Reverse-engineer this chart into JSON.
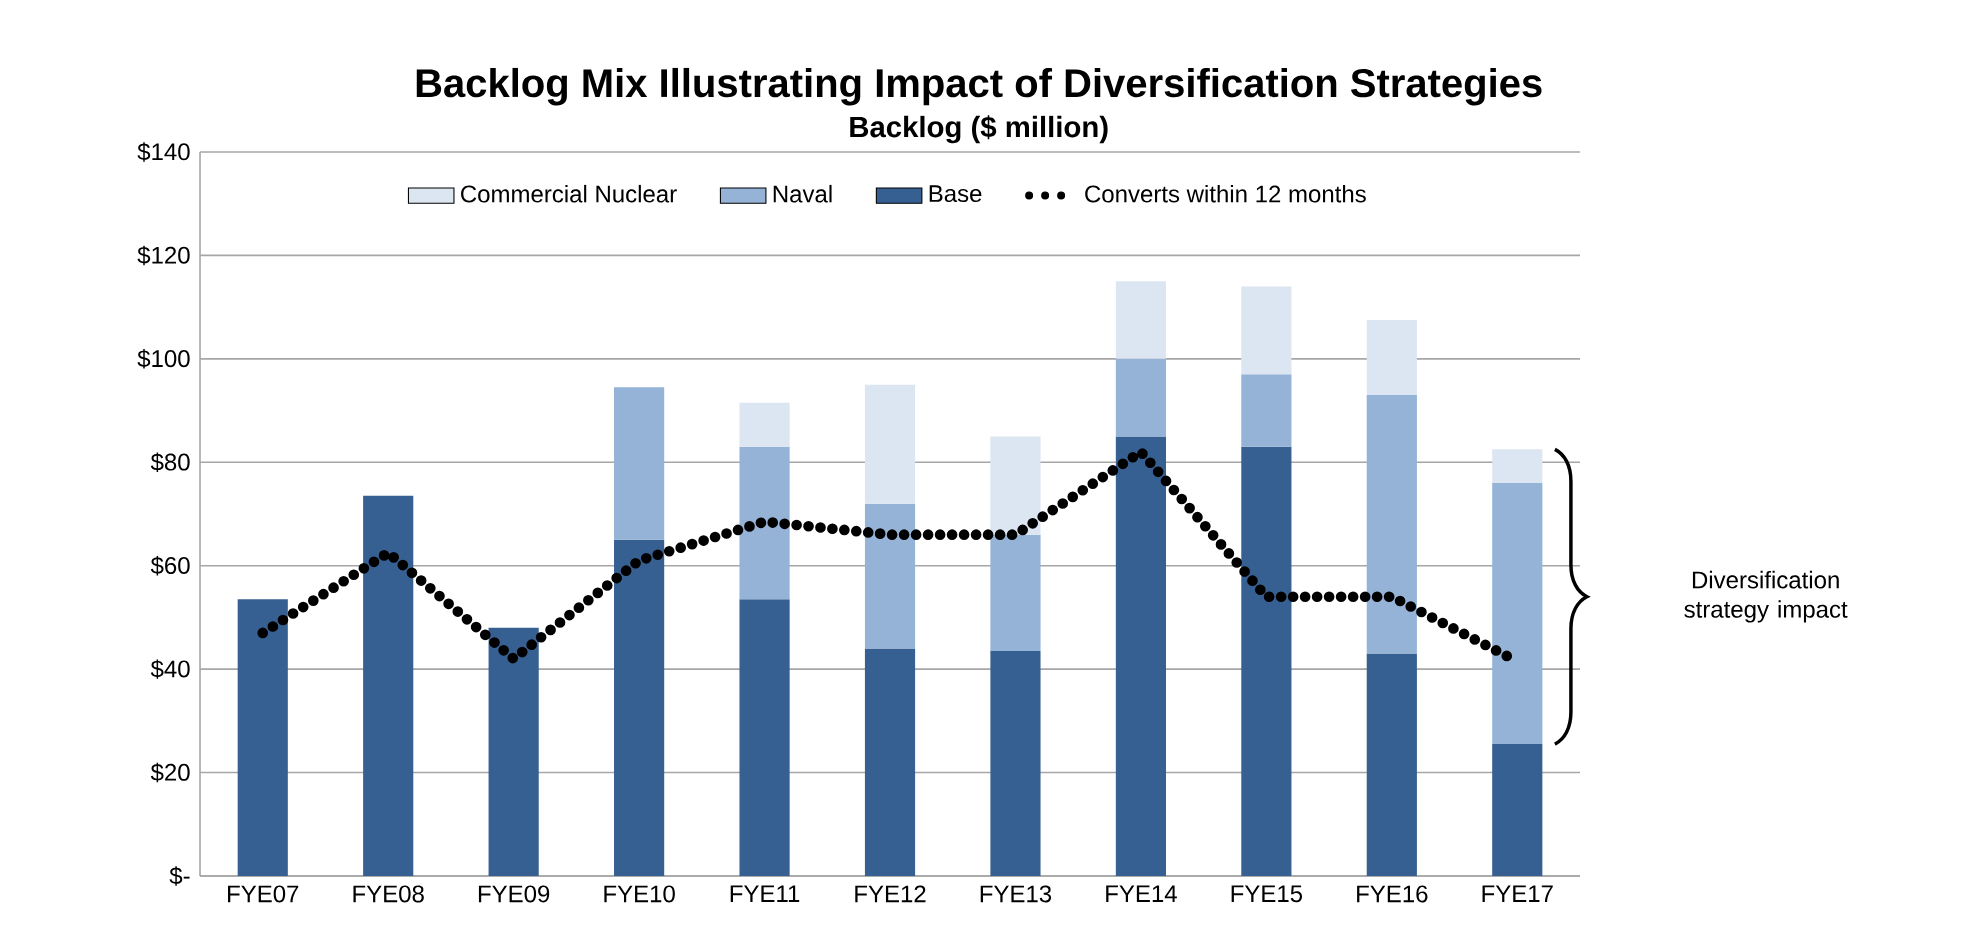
{
  "chart_data": {
    "type": "bar",
    "stacked": true,
    "title": "Backlog Mix Illustrating Impact of Diversification Strategies",
    "subtitle": "Backlog ($ million)",
    "categories": [
      "FYE07",
      "FYE08",
      "FYE09",
      "FYE10",
      "FYE11",
      "FYE12",
      "FYE13",
      "FYE14",
      "FYE15",
      "FYE16",
      "FYE17"
    ],
    "series": [
      {
        "name": "Base",
        "color": "#376092",
        "values": [
          53.5,
          73.5,
          48,
          65,
          53.5,
          44,
          43.5,
          85,
          83,
          43,
          25.5
        ]
      },
      {
        "name": "Naval",
        "color": "#95b3d7",
        "values": [
          null,
          null,
          null,
          29.5,
          29.5,
          28,
          22.5,
          15,
          14,
          50,
          50.5
        ]
      },
      {
        "name": "Commercial Nuclear",
        "color": "#dce6f2",
        "values": [
          null,
          null,
          null,
          null,
          8.5,
          23,
          19,
          15,
          17,
          14.5,
          6.5
        ]
      },
      {
        "name": "Converts within 12 months",
        "type": "line",
        "color": "#000000",
        "line_style": "dotted",
        "marker": "none",
        "values": [
          47,
          62.5,
          42,
          61,
          68.5,
          66,
          66,
          82,
          54,
          54,
          41.5
        ]
      }
    ],
    "ylim": [
      0,
      140
    ],
    "yticks": [
      {
        "value": 0,
        "label": "$-"
      },
      {
        "value": 20,
        "label": "$20"
      },
      {
        "value": 40,
        "label": "$40"
      },
      {
        "value": 60,
        "label": "$60"
      },
      {
        "value": 80,
        "label": "$80"
      },
      {
        "value": 100,
        "label": "$100"
      },
      {
        "value": 120,
        "label": "$120"
      },
      {
        "value": 140,
        "label": "$140"
      }
    ],
    "grid": "y",
    "legend": "top",
    "annotations": [
      "Diversification strategy impact"
    ]
  }
}
